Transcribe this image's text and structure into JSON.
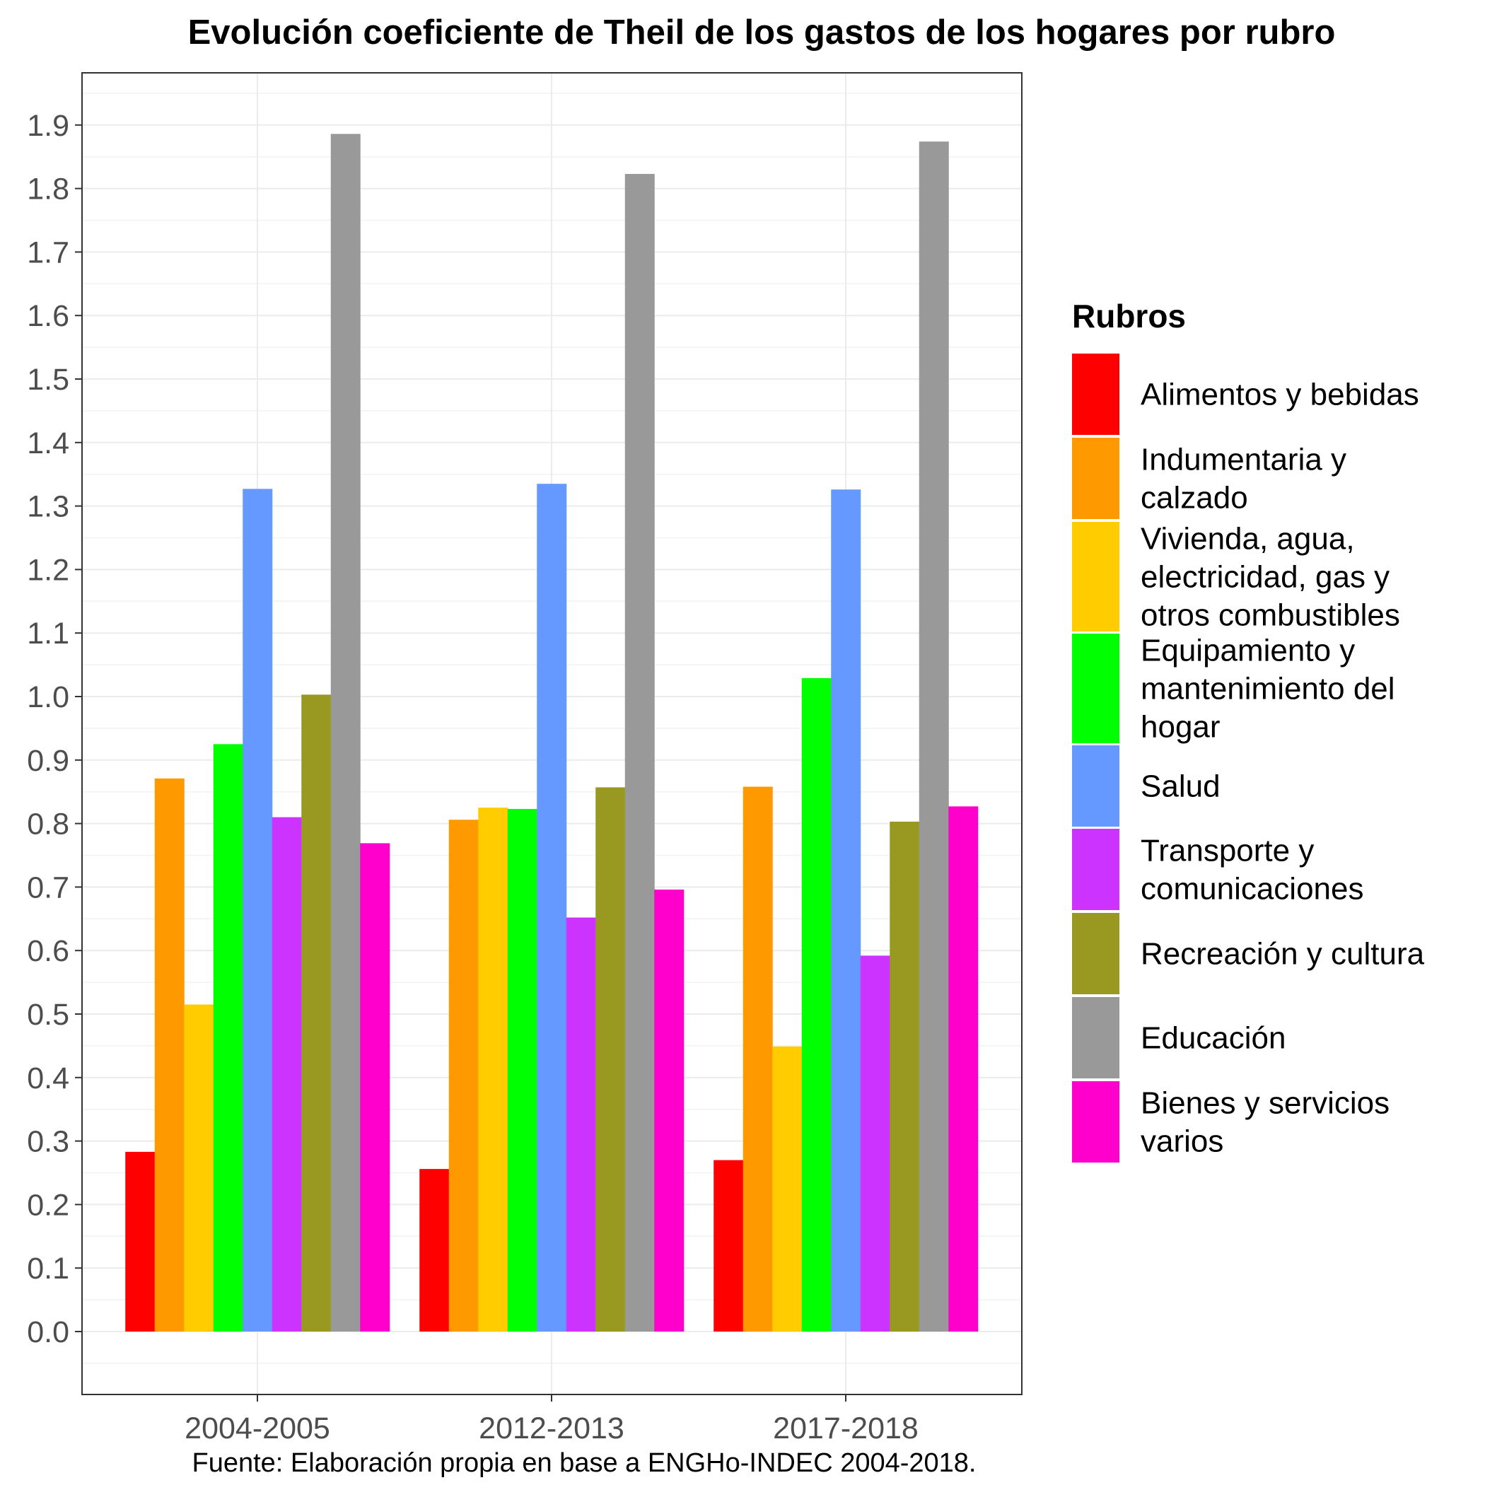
{
  "chart_data": {
    "type": "bar",
    "title": "Evolución coeficiente de Theil de los gastos de los hogares por rubro",
    "xlabel": "",
    "ylabel": "",
    "caption": "Fuente: Elaboración propia en base a ENGHo-INDEC 2004-2018.",
    "categories": [
      "2004-2005",
      "2012-2013",
      "2017-2018"
    ],
    "ylim": [
      -0.05,
      1.98
    ],
    "yticks": [
      "0.0",
      "0.1",
      "0.2",
      "0.3",
      "0.4",
      "0.5",
      "0.6",
      "0.7",
      "0.8",
      "0.9",
      "1.0",
      "1.1",
      "1.2",
      "1.3",
      "1.4",
      "1.5",
      "1.6",
      "1.7",
      "1.8",
      "1.9"
    ],
    "grid": true,
    "legend_placement": "right",
    "legend_title": "Rubros",
    "series": [
      {
        "name": "Alimentos y bebidas",
        "name_lines": [
          "Alimentos y bebidas"
        ],
        "color": "#FF0000",
        "values": [
          0.283,
          0.256,
          0.27
        ]
      },
      {
        "name": "Indumentaria y calzado",
        "name_lines": [
          "Indumentaria y",
          "calzado"
        ],
        "color": "#FF9900",
        "values": [
          0.871,
          0.806,
          0.858
        ]
      },
      {
        "name": "Vivienda, agua, electricidad, gas y otros combustibles",
        "name_lines": [
          "Vivienda, agua,",
          "electricidad, gas y",
          "otros combustibles"
        ],
        "color": "#FFCC00",
        "values": [
          0.515,
          0.825,
          0.449
        ]
      },
      {
        "name": "Equipamiento y mantenimiento del hogar",
        "name_lines": [
          "Equipamiento y",
          "mantenimiento del",
          "hogar"
        ],
        "color": "#00FF00",
        "values": [
          0.925,
          0.823,
          1.029
        ]
      },
      {
        "name": "Salud",
        "name_lines": [
          "Salud"
        ],
        "color": "#6699FF",
        "values": [
          1.327,
          1.335,
          1.326
        ]
      },
      {
        "name": "Transporte y comunicaciones",
        "name_lines": [
          "Transporte y",
          "comunicaciones"
        ],
        "color": "#CC33FF",
        "values": [
          0.81,
          0.652,
          0.592
        ]
      },
      {
        "name": "Recreación y cultura",
        "name_lines": [
          "Recreación y cultura"
        ],
        "color": "#999922",
        "values": [
          1.003,
          0.857,
          0.803
        ]
      },
      {
        "name": "Educación",
        "name_lines": [
          "Educación"
        ],
        "color": "#999999",
        "values": [
          1.886,
          1.823,
          1.874
        ]
      },
      {
        "name": "Bienes y servicios varios",
        "name_lines": [
          "Bienes y servicios",
          "varios"
        ],
        "color": "#FF00CC",
        "values": [
          0.769,
          0.696,
          0.827
        ]
      }
    ]
  }
}
